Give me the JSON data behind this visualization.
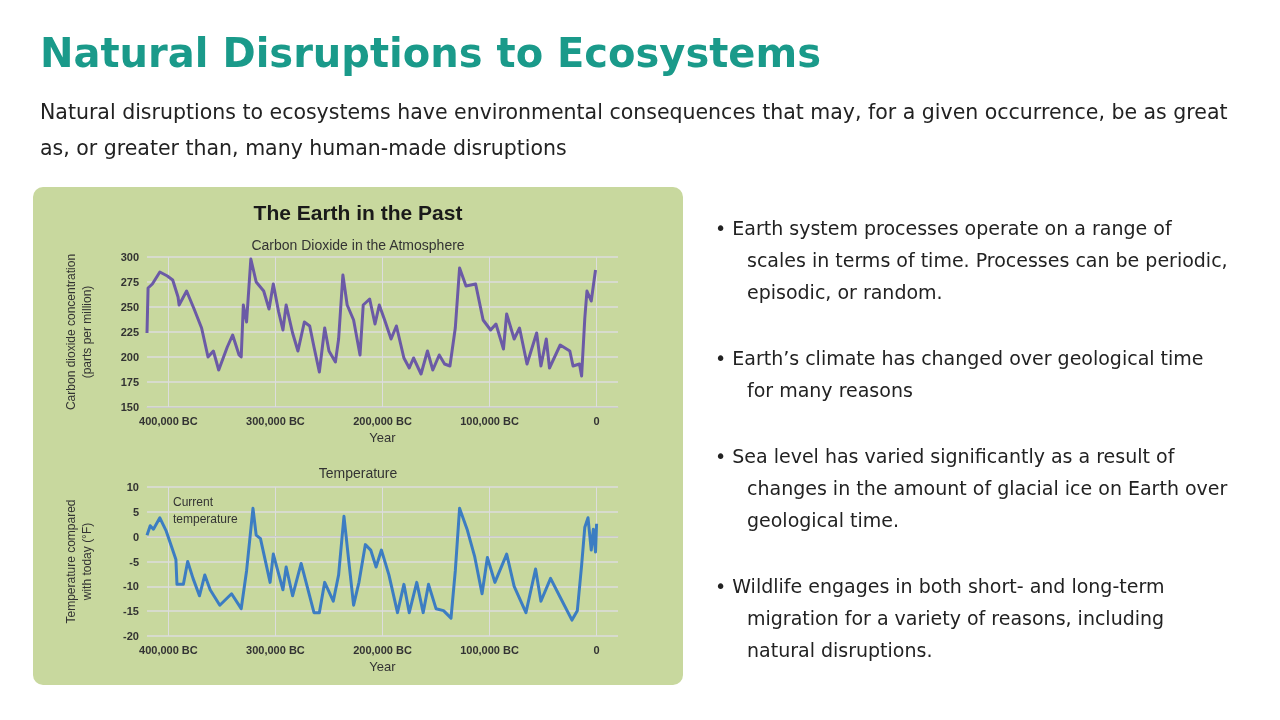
{
  "chart_data": [
    {
      "type": "other",
      "title": "Natural Disruptions to Ecosystems",
      "subtitle": "Natural disruptions to ecosystems have environmental consequences that may, for a given occurrence, be as great as, or greater than, many human-made disruptions",
      "annotations": [
        "• Earth system processes operate on a range of scales in terms of time. Processes can be periodic, episodic, or random.",
        "• Earth’s climate has changed over geological time for many reasons",
        "• Sea level has varied significantly as a result of changes in the amount of glacial ice on Earth over geological time.",
        "• Wildlife engages in both short- and long-term migration for a variety of reasons, including natural disruptions."
      ]
    },
    {
      "type": "line",
      "title": "The Earth in the Past",
      "subtitle": "Carbon Dioxide in the Atmosphere",
      "xlabel": "Year",
      "ylabel": "Carbon dioxide concentration (parts per million)",
      "grid": true,
      "marker": "none",
      "line_style": "solid",
      "xlim": [
        -420000,
        20000
      ],
      "xticks": [
        {
          "value": -400000,
          "label": "400,000 BC"
        },
        {
          "value": -300000,
          "label": "300,000 BC"
        },
        {
          "value": -200000,
          "label": "200,000 BC"
        },
        {
          "value": -100000,
          "label": "100,000 BC"
        },
        0
      ],
      "ylim": [
        150,
        300
      ],
      "yticks": [
        150,
        175,
        200,
        225,
        250,
        275,
        300
      ],
      "series": [
        {
          "color": "#6b5aa6",
          "x": [
            -420000,
            -419000,
            -415000,
            -408000,
            -401000,
            -396000,
            -391000,
            -390000,
            -383000,
            -376000,
            -369000,
            -363000,
            -358000,
            -353000,
            -345000,
            -340000,
            -334000,
            -332000,
            -330000,
            -327000,
            -323000,
            -318000,
            -311000,
            -306000,
            -302000,
            -297000,
            -293000,
            -290000,
            -284000,
            -279000,
            -273000,
            -268000,
            -264000,
            -259000,
            -254000,
            -250000,
            -244000,
            -241000,
            -237000,
            -233000,
            -227000,
            -221000,
            -218000,
            -212000,
            -207000,
            -203000,
            -198000,
            -192000,
            -187000,
            -180000,
            -175000,
            -171000,
            -164000,
            -158000,
            -153000,
            -147000,
            -142000,
            -137000,
            -132000,
            -128000,
            -122000,
            -113000,
            -106000,
            -99000,
            -94000,
            -87000,
            -84000,
            -77000,
            -72000,
            -65000,
            -56000,
            -52000,
            -47000,
            -44000,
            -34000,
            -25000,
            -22000,
            -16000,
            -14000,
            -11000,
            -9000,
            -5000,
            -1000
          ],
          "values": [
            224,
            269,
            273,
            285,
            281,
            277,
            260,
            252,
            266,
            248,
            229,
            200,
            206,
            187,
            210,
            222,
            202,
            200,
            252,
            235,
            298,
            275,
            266,
            248,
            273,
            245,
            227,
            252,
            224,
            206,
            235,
            231,
            210,
            185,
            229,
            206,
            195,
            218,
            282,
            252,
            237,
            202,
            252,
            258,
            233,
            252,
            237,
            218,
            231,
            199,
            189,
            199,
            183,
            206,
            187,
            202,
            193,
            191,
            229,
            289,
            271,
            273,
            237,
            227,
            233,
            208,
            243,
            218,
            229,
            193,
            224,
            191,
            218,
            189,
            212,
            206,
            191,
            193,
            181,
            239,
            266,
            256,
            287
          ]
        }
      ]
    },
    {
      "type": "line",
      "title": "Temperature",
      "xlabel": "Year",
      "ylabel": "Temperature compared with today (°F)",
      "grid": true,
      "marker": "none",
      "line_style": "solid",
      "annotations": [
        "Current temperature"
      ],
      "xlim": [
        -420000,
        20000
      ],
      "xticks": [
        {
          "value": -400000,
          "label": "400,000 BC"
        },
        {
          "value": -300000,
          "label": "300,000 BC"
        },
        {
          "value": -200000,
          "label": "200,000 BC"
        },
        {
          "value": -100000,
          "label": "100,000 BC"
        },
        0
      ],
      "ylim": [
        -20,
        10
      ],
      "yticks": [
        -20,
        -15,
        -10,
        -5,
        0,
        5,
        10
      ],
      "series": [
        {
          "color": "#3c7dc2",
          "x": [
            -420000,
            -417000,
            -414000,
            -408000,
            -402000,
            -396000,
            -393000,
            -392000,
            -386000,
            -382000,
            -377000,
            -371000,
            -366000,
            -361000,
            -352000,
            -341000,
            -332000,
            -327000,
            -321000,
            -318000,
            -314000,
            -305000,
            -302000,
            -293000,
            -290000,
            -284000,
            -276000,
            -264000,
            -259000,
            -254000,
            -246000,
            -241000,
            -236000,
            -232000,
            -227000,
            -222000,
            -216000,
            -211000,
            -206000,
            -201000,
            -194000,
            -186000,
            -180000,
            -175000,
            -168000,
            -162000,
            -157000,
            -150000,
            -143000,
            -136000,
            -132000,
            -128000,
            -121000,
            -114000,
            -107000,
            -102000,
            -95000,
            -84000,
            -77000,
            -66000,
            -57000,
            -52000,
            -43000,
            -34000,
            -23000,
            -18000,
            -14000,
            -11000,
            -8000,
            -5000,
            -3000,
            -1000,
            0
          ],
          "values": [
            0.3,
            2.2,
            1.5,
            3.8,
            1.1,
            -2.7,
            -4.6,
            -9.6,
            -9.6,
            -5,
            -8.4,
            -11.9,
            -7.7,
            -10.7,
            -13.8,
            -11.5,
            -14.5,
            -6.9,
            5.7,
            0.3,
            -0.4,
            -9.2,
            -3.5,
            -10.7,
            -6.1,
            -11.9,
            -5.4,
            -15.3,
            -15.3,
            -9.2,
            -13,
            -7.7,
            4.1,
            -3.9,
            -13.8,
            -9.2,
            -1.6,
            -2.7,
            -6.1,
            -2.7,
            -7.7,
            -15.3,
            -9.6,
            -15.3,
            -9.2,
            -15.3,
            -9.6,
            -14.5,
            -14.9,
            -16.4,
            -6.9,
            5.7,
            1.5,
            -3.9,
            -11.5,
            -4.2,
            -9.2,
            -3.5,
            -10,
            -15.3,
            -6.5,
            -13,
            -8.4,
            -12.2,
            -16.8,
            -14.9,
            -5.8,
            1.9,
            3.8,
            -2.7,
            1.5,
            -3.1,
            2.6
          ]
        }
      ]
    }
  ]
}
